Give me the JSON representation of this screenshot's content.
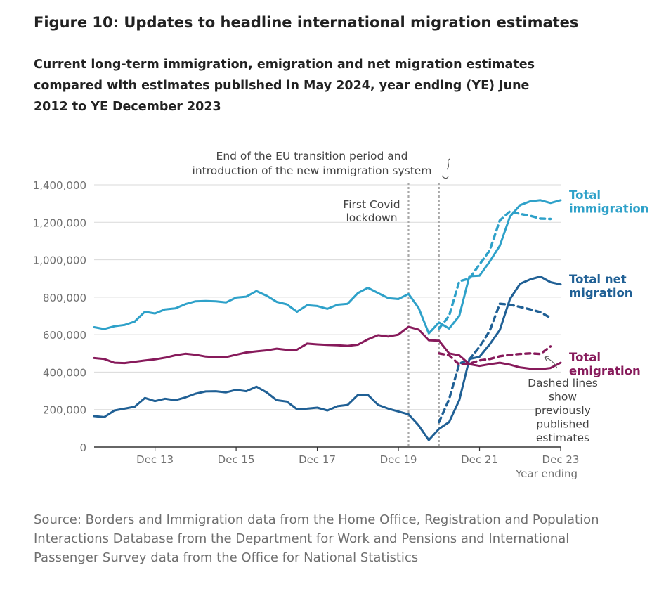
{
  "figure": {
    "title": "Figure 10: Updates to headline international migration estimates",
    "subtitle": "Current long-term immigration, emigration and net migration estimates compared with estimates published in May 2024, year ending (YE) June 2012 to YE December 2023",
    "source": "Source: Borders and Immigration data from the Home Office, Registration and Population Interactions Database from the Department for Work and Pensions and International Passenger Survey data from the Office for National Statistics"
  },
  "chart_data": {
    "type": "line",
    "xlabel": "Year ending",
    "ylabel": "",
    "ylim": [
      0,
      1400000
    ],
    "yticks": [
      0,
      200000,
      400000,
      600000,
      800000,
      1000000,
      1200000,
      1400000
    ],
    "ytick_labels": [
      "0",
      "200,000",
      "400,000",
      "600,000",
      "800,000",
      "1,000,000",
      "1,200,000",
      "1,400,000"
    ],
    "x_start": "Jun 2012",
    "x_end": "Dec 2023",
    "x_step_months": 3,
    "xtick_labels": [
      {
        "label": "Dec 13",
        "date": "Dec 2013"
      },
      {
        "label": "Dec 15",
        "date": "Dec 2015"
      },
      {
        "label": "Dec 17",
        "date": "Dec 2017"
      },
      {
        "label": "Dec 19",
        "date": "Dec 2019"
      },
      {
        "label": "Dec 21",
        "date": "Dec 2021"
      },
      {
        "label": "Dec 23",
        "date": "Dec 2023"
      }
    ],
    "grid": true,
    "series": [
      {
        "name": "Total immigration",
        "label_lines": [
          "Total",
          "immigration"
        ],
        "color": "#2ea1c9",
        "style": "solid",
        "values": [
          640000,
          630000,
          645000,
          652000,
          670000,
          722000,
          713000,
          735000,
          740000,
          763000,
          778000,
          780000,
          778000,
          772000,
          798000,
          803000,
          833000,
          808000,
          775000,
          762000,
          722000,
          757000,
          753000,
          738000,
          760000,
          765000,
          822000,
          850000,
          822000,
          795000,
          790000,
          817000,
          742000,
          607000,
          665000,
          633000,
          700000,
          912000,
          915000,
          990000,
          1075000,
          1230000,
          1292000,
          1312000,
          1318000,
          1303000,
          1318000
        ]
      },
      {
        "name": "Total immigration (previously published)",
        "color": "#2ea1c9",
        "style": "dashed",
        "start": "Dec 2020",
        "values": [
          633000,
          700000,
          885000,
          900000,
          975000,
          1050000,
          1210000,
          1258000,
          1245000,
          1235000,
          1220000,
          1218000
        ]
      },
      {
        "name": "Total net migration",
        "label_lines": [
          "Total net",
          "migration"
        ],
        "color": "#206095",
        "style": "solid",
        "values": [
          165000,
          160000,
          195000,
          205000,
          215000,
          262000,
          245000,
          258000,
          250000,
          265000,
          285000,
          297000,
          298000,
          292000,
          305000,
          298000,
          322000,
          292000,
          250000,
          243000,
          202000,
          205000,
          210000,
          195000,
          218000,
          225000,
          278000,
          278000,
          225000,
          205000,
          190000,
          175000,
          115000,
          37000,
          97000,
          133000,
          250000,
          470000,
          482000,
          548000,
          625000,
          790000,
          872000,
          895000,
          910000,
          880000,
          868000
        ]
      },
      {
        "name": "Total net migration (previously published)",
        "color": "#206095",
        "style": "dashed",
        "start": "Dec 2020",
        "values": [
          133000,
          255000,
          445000,
          468000,
          535000,
          620000,
          765000,
          760000,
          748000,
          735000,
          720000,
          690000
        ]
      },
      {
        "name": "Total emigration",
        "label_lines": [
          "Total",
          "emigration"
        ],
        "color": "#871a5b",
        "style": "solid",
        "values": [
          475000,
          470000,
          450000,
          448000,
          455000,
          462000,
          468000,
          477000,
          490000,
          498000,
          493000,
          483000,
          480000,
          480000,
          493000,
          505000,
          511000,
          516000,
          525000,
          519000,
          520000,
          552000,
          548000,
          545000,
          543000,
          540000,
          546000,
          575000,
          597000,
          590000,
          600000,
          642000,
          627000,
          570000,
          568000,
          500000,
          490000,
          442000,
          433000,
          442000,
          450000,
          440000,
          425000,
          418000,
          415000,
          422000,
          450000
        ]
      },
      {
        "name": "Total emigration (previously published)",
        "color": "#871a5b",
        "style": "dashed",
        "start": "Dec 2020",
        "values": [
          500000,
          490000,
          440000,
          445000,
          462000,
          470000,
          485000,
          492000,
          497000,
          500000,
          497000,
          537000
        ]
      }
    ],
    "reference_lines": [
      {
        "date": "Mar 2020",
        "label_lines": [
          "First Covid",
          "lockdown"
        ]
      },
      {
        "date": "Dec 2020",
        "label_lines": [
          "End of the EU transition period and",
          "introduction of the new immigration system"
        ]
      }
    ],
    "annotation": {
      "lines": [
        "Dashed lines",
        "show",
        "previously",
        "published",
        "estimates"
      ]
    },
    "colors": {
      "immigration": "#2ea1c9",
      "net_migration": "#206095",
      "emigration": "#871a5b",
      "grid": "#d9d9d9",
      "reference_line": "#a8a8a8",
      "axis_text": "#707070"
    }
  }
}
